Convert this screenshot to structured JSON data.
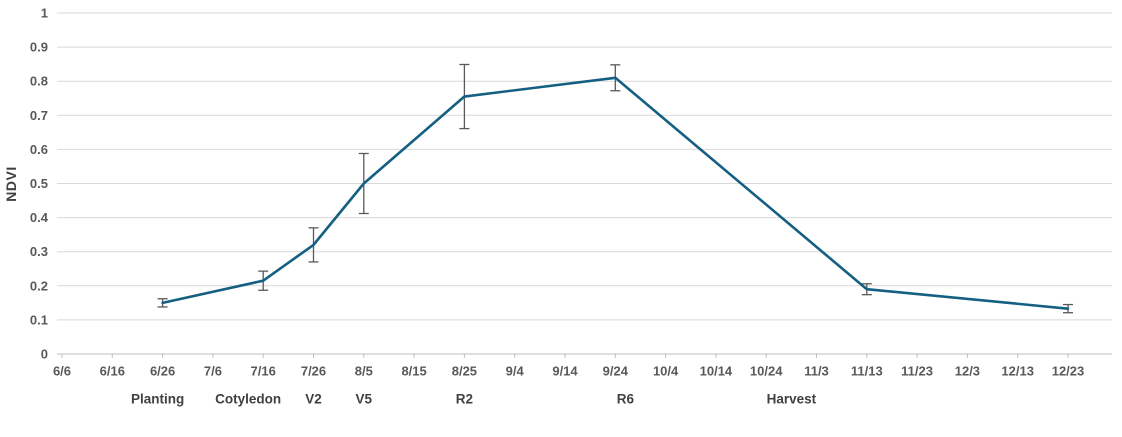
{
  "chart_data": {
    "type": "line",
    "title": "",
    "xlabel": "",
    "ylabel": "NDVI",
    "ylim": [
      0,
      1
    ],
    "y_ticks": [
      "0",
      "0.1",
      "0.2",
      "0.3",
      "0.4",
      "0.5",
      "0.6",
      "0.7",
      "0.8",
      "0.9",
      "1"
    ],
    "x_ticks": [
      "6/6",
      "6/16",
      "6/26",
      "7/6",
      "7/16",
      "7/26",
      "8/5",
      "8/15",
      "8/25",
      "9/4",
      "9/14",
      "9/24",
      "10/4",
      "10/14",
      "10/24",
      "11/3",
      "11/13",
      "11/23",
      "12/3",
      "12/13",
      "12/23"
    ],
    "grid": "horizontal",
    "legend_position": "none",
    "colors": {
      "line": "#156082",
      "error_bar": "#595959",
      "gridline": "#D9D9D9",
      "axis_line": "#BFBFBF",
      "tick_label": "#595959",
      "stage_label": "#404040"
    },
    "series": [
      {
        "name": "NDVI",
        "points": [
          {
            "date": "6/26",
            "value": 0.15,
            "error": 0.012
          },
          {
            "date": "7/16",
            "value": 0.215,
            "error": 0.028
          },
          {
            "date": "7/26",
            "value": 0.32,
            "error": 0.05
          },
          {
            "date": "8/5",
            "value": 0.5,
            "error": 0.088
          },
          {
            "date": "8/25",
            "value": 0.755,
            "error": 0.094
          },
          {
            "date": "9/24",
            "value": 0.81,
            "error": 0.038
          },
          {
            "date": "11/13",
            "value": 0.19,
            "error": 0.016
          },
          {
            "date": "12/23",
            "value": 0.133,
            "error": 0.012
          }
        ]
      }
    ],
    "stage_labels": [
      {
        "label": "Planting",
        "date": "6/25"
      },
      {
        "label": "Cotyledon",
        "date": "7/13"
      },
      {
        "label": "V2",
        "date": "7/26"
      },
      {
        "label": "V5",
        "date": "8/5"
      },
      {
        "label": "R2",
        "date": "8/25"
      },
      {
        "label": "R6",
        "date": "9/26"
      },
      {
        "label": "Harvest",
        "date": "10/29"
      }
    ]
  }
}
